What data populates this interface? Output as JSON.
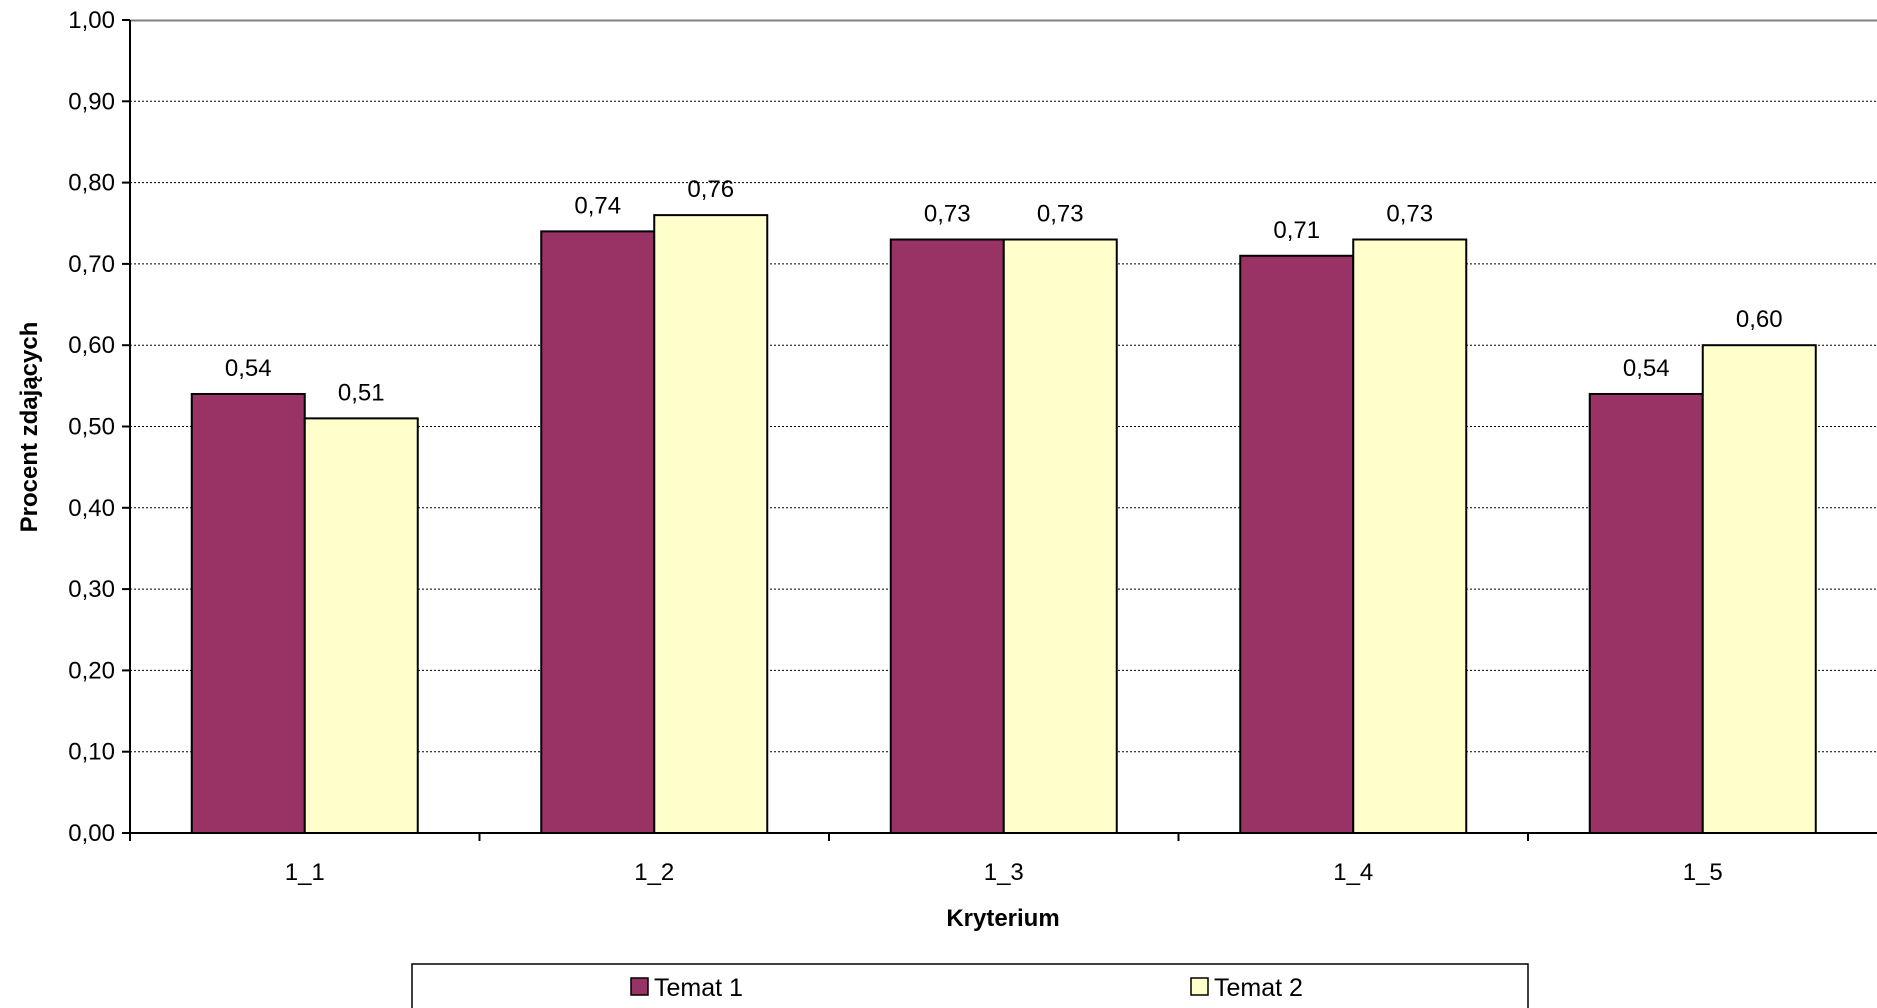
{
  "chart_data": {
    "type": "bar",
    "categories": [
      "1_1",
      "1_2",
      "1_3",
      "1_4",
      "1_5"
    ],
    "series": [
      {
        "name": "Temat 1",
        "values": [
          0.54,
          0.74,
          0.73,
          0.71,
          0.54
        ],
        "labels": [
          "0,54",
          "0,74",
          "0,73",
          "0,71",
          "0,54"
        ],
        "color": "#993366"
      },
      {
        "name": "Temat 2",
        "values": [
          0.51,
          0.76,
          0.73,
          0.73,
          0.6
        ],
        "labels": [
          "0,51",
          "0,76",
          "0,73",
          "0,73",
          "0,60"
        ],
        "color": "#FFFFCC"
      }
    ],
    "title": "",
    "xlabel": "Kryterium",
    "ylabel": "Procent zdających",
    "ylim": [
      0,
      1
    ],
    "yticks": [
      0,
      0.1,
      0.2,
      0.3,
      0.4,
      0.5,
      0.6,
      0.7,
      0.8,
      0.9,
      1.0
    ],
    "ytick_labels": [
      "0,00",
      "0,10",
      "0,20",
      "0,30",
      "0,40",
      "0,50",
      "0,60",
      "0,70",
      "0,80",
      "0,90",
      "1,00"
    ],
    "grid": true,
    "legend": "bottom"
  }
}
